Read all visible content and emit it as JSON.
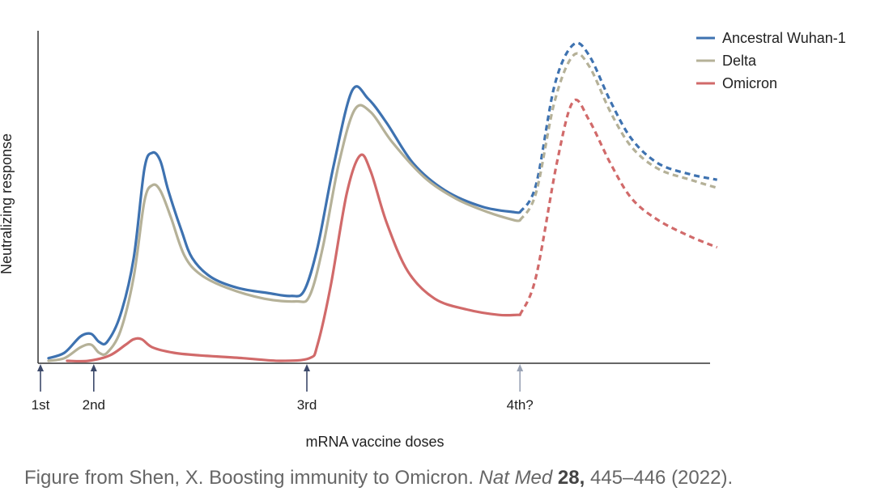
{
  "chart_data": {
    "type": "line",
    "xlabel": "mRNA vaccine doses",
    "ylabel": "Neutralizing response",
    "dose_labels": [
      "1st",
      "2nd",
      "3rd",
      "4th?"
    ],
    "dose_x": [
      0,
      1,
      5,
      9
    ],
    "xlim": [
      0,
      12.7
    ],
    "ylim": [
      0,
      1
    ],
    "y_ticks": "none",
    "legend_position": "top-right",
    "dashed_from_x": 9,
    "series": [
      {
        "name": "Ancestral Wuhan-1",
        "color": "#3e72b0",
        "points": [
          [
            0.15,
            0.01
          ],
          [
            0.45,
            0.03
          ],
          [
            0.75,
            0.09
          ],
          [
            0.95,
            0.1
          ],
          [
            1.1,
            0.07
          ],
          [
            1.25,
            0.07
          ],
          [
            1.5,
            0.17
          ],
          [
            1.75,
            0.38
          ],
          [
            1.95,
            0.71
          ],
          [
            2.1,
            0.77
          ],
          [
            2.25,
            0.74
          ],
          [
            2.4,
            0.63
          ],
          [
            2.65,
            0.48
          ],
          [
            2.85,
            0.38
          ],
          [
            3.2,
            0.31
          ],
          [
            3.7,
            0.27
          ],
          [
            4.3,
            0.25
          ],
          [
            4.7,
            0.24
          ],
          [
            4.95,
            0.26
          ],
          [
            5.2,
            0.42
          ],
          [
            5.5,
            0.72
          ],
          [
            5.85,
            1.0
          ],
          [
            6.15,
            0.97
          ],
          [
            6.5,
            0.88
          ],
          [
            7.0,
            0.73
          ],
          [
            7.6,
            0.63
          ],
          [
            8.3,
            0.57
          ],
          [
            8.9,
            0.55
          ],
          [
            9.0,
            0.55
          ],
          [
            9.3,
            0.65
          ],
          [
            9.65,
            1.02
          ],
          [
            10.0,
            1.17
          ],
          [
            10.3,
            1.13
          ],
          [
            10.7,
            0.96
          ],
          [
            11.1,
            0.82
          ],
          [
            11.6,
            0.73
          ],
          [
            12.2,
            0.69
          ],
          [
            12.7,
            0.67
          ]
        ]
      },
      {
        "name": "Delta",
        "color": "#b5b198",
        "points": [
          [
            0.15,
            0.0
          ],
          [
            0.45,
            0.01
          ],
          [
            0.75,
            0.05
          ],
          [
            0.95,
            0.06
          ],
          [
            1.1,
            0.03
          ],
          [
            1.25,
            0.03
          ],
          [
            1.5,
            0.11
          ],
          [
            1.75,
            0.31
          ],
          [
            1.95,
            0.59
          ],
          [
            2.1,
            0.65
          ],
          [
            2.25,
            0.63
          ],
          [
            2.45,
            0.53
          ],
          [
            2.7,
            0.39
          ],
          [
            3.0,
            0.32
          ],
          [
            3.5,
            0.27
          ],
          [
            4.2,
            0.23
          ],
          [
            4.8,
            0.22
          ],
          [
            5.05,
            0.24
          ],
          [
            5.3,
            0.42
          ],
          [
            5.6,
            0.73
          ],
          [
            5.9,
            0.93
          ],
          [
            6.2,
            0.92
          ],
          [
            6.6,
            0.81
          ],
          [
            7.2,
            0.68
          ],
          [
            7.8,
            0.6
          ],
          [
            8.4,
            0.55
          ],
          [
            8.9,
            0.52
          ],
          [
            9.0,
            0.52
          ],
          [
            9.3,
            0.62
          ],
          [
            9.65,
            0.96
          ],
          [
            10.0,
            1.13
          ],
          [
            10.3,
            1.09
          ],
          [
            10.7,
            0.92
          ],
          [
            11.1,
            0.79
          ],
          [
            11.6,
            0.71
          ],
          [
            12.2,
            0.67
          ],
          [
            12.7,
            0.64
          ]
        ]
      },
      {
        "name": "Omicron",
        "color": "#d16a6a",
        "points": [
          [
            0.5,
            0.0
          ],
          [
            0.9,
            0.0
          ],
          [
            1.3,
            0.02
          ],
          [
            1.6,
            0.06
          ],
          [
            1.75,
            0.08
          ],
          [
            1.9,
            0.08
          ],
          [
            2.1,
            0.05
          ],
          [
            2.5,
            0.03
          ],
          [
            3.0,
            0.02
          ],
          [
            3.8,
            0.01
          ],
          [
            4.5,
            0.0
          ],
          [
            5.05,
            0.01
          ],
          [
            5.2,
            0.06
          ],
          [
            5.45,
            0.28
          ],
          [
            5.75,
            0.62
          ],
          [
            6.0,
            0.76
          ],
          [
            6.2,
            0.7
          ],
          [
            6.5,
            0.51
          ],
          [
            6.9,
            0.33
          ],
          [
            7.4,
            0.23
          ],
          [
            8.0,
            0.19
          ],
          [
            8.6,
            0.17
          ],
          [
            8.95,
            0.17
          ],
          [
            9.0,
            0.17
          ],
          [
            9.3,
            0.31
          ],
          [
            9.7,
            0.74
          ],
          [
            10.0,
            0.96
          ],
          [
            10.3,
            0.89
          ],
          [
            10.7,
            0.73
          ],
          [
            11.1,
            0.6
          ],
          [
            11.6,
            0.52
          ],
          [
            12.2,
            0.46
          ],
          [
            12.7,
            0.42
          ]
        ]
      }
    ]
  },
  "caption": {
    "prefix": "Figure from Shen, X. Boosting immunity to Omicron. ",
    "journal": "Nat Med",
    "volume": "28,",
    "suffix": " 445–446 (2022)."
  }
}
